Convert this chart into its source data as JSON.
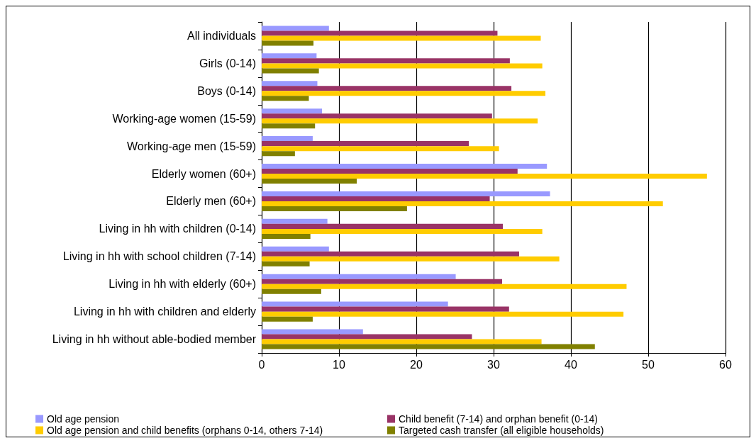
{
  "chart_data": {
    "type": "bar",
    "orientation": "horizontal",
    "categories": [
      "All individuals",
      "Girls (0-14)",
      "Boys (0-14)",
      "Working-age women (15-59)",
      "Working-age men (15-59)",
      "Elderly women (60+)",
      "Elderly men (60+)",
      "Living in hh with children (0-14)",
      "Living in hh with school children (7-14)",
      "Living in hh with elderly (60+)",
      "Living in hh with children and elderly",
      "Living in hh without able-bodied member"
    ],
    "series": [
      {
        "name": "Old age pension",
        "color": "#9999ff",
        "values": [
          8.7,
          7.1,
          7.2,
          7.8,
          6.6,
          36.9,
          37.3,
          8.5,
          8.7,
          25.1,
          24.1,
          13.1
        ]
      },
      {
        "name": "Child benefit (7-14) and orphan benefit (0-14)",
        "color": "#993366",
        "values": [
          30.5,
          32.1,
          32.3,
          29.8,
          26.8,
          33.1,
          29.5,
          31.2,
          33.3,
          31.1,
          32.0,
          27.2
        ]
      },
      {
        "name": "Old age pension and child benefits (orphans 0-14, others 7-14)",
        "color": "#ffcc00",
        "values": [
          36.1,
          36.3,
          36.7,
          35.7,
          30.7,
          57.6,
          51.9,
          36.3,
          38.5,
          47.2,
          46.8,
          36.2
        ]
      },
      {
        "name": "Targeted cash transfer (all eligible households)",
        "color": "#808000",
        "values": [
          6.7,
          7.4,
          6.1,
          6.9,
          4.3,
          12.3,
          18.8,
          6.3,
          6.2,
          7.7,
          6.6,
          43.1
        ]
      }
    ],
    "xlim": [
      0,
      60
    ],
    "xticks": [
      0,
      10,
      20,
      30,
      40,
      50,
      60
    ],
    "grid": "x",
    "legend": "bottom"
  }
}
